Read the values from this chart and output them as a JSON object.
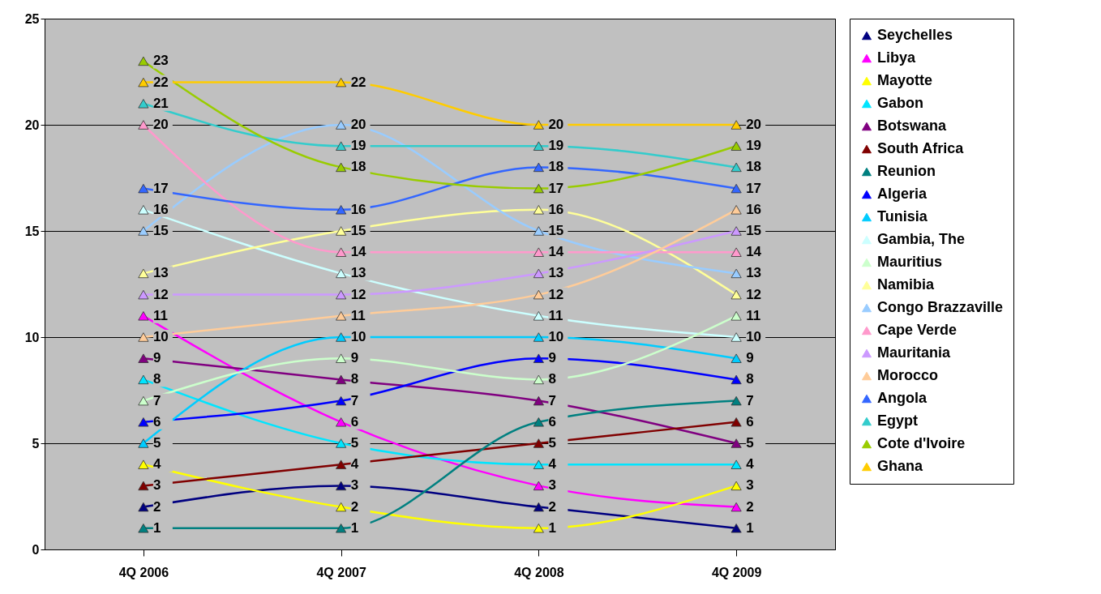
{
  "chart_data": {
    "type": "line",
    "categories": [
      "4Q 2006",
      "4Q 2007",
      "4Q 2008",
      "4Q 2009"
    ],
    "ylim": [
      0,
      25
    ],
    "yticks": [
      0,
      5,
      10,
      15,
      20,
      25
    ],
    "grid": "y",
    "legend": "right",
    "marker": "triangle",
    "line_style": "solid",
    "data_labels": true,
    "series": [
      {
        "name": "Seychelles",
        "color": "#000080",
        "values": [
          2,
          3,
          2,
          1
        ]
      },
      {
        "name": "Libya",
        "color": "#ff00ff",
        "values": [
          11,
          6,
          3,
          2
        ]
      },
      {
        "name": "Mayotte",
        "color": "#ffff00",
        "values": [
          4,
          2,
          1,
          3
        ]
      },
      {
        "name": "Gabon",
        "color": "#00e5ff",
        "values": [
          8,
          5,
          4,
          4
        ]
      },
      {
        "name": "Botswana",
        "color": "#800080",
        "values": [
          9,
          8,
          7,
          5
        ]
      },
      {
        "name": "South Africa",
        "color": "#800000",
        "values": [
          3,
          4,
          5,
          6
        ]
      },
      {
        "name": "Reunion",
        "color": "#008080",
        "values": [
          1,
          1,
          6,
          7
        ]
      },
      {
        "name": "Algeria",
        "color": "#0000ff",
        "values": [
          6,
          7,
          9,
          8
        ]
      },
      {
        "name": "Tunisia",
        "color": "#00ccff",
        "values": [
          5,
          10,
          10,
          9
        ]
      },
      {
        "name": "Gambia, The",
        "color": "#ccffff",
        "values": [
          16,
          13,
          11,
          10
        ]
      },
      {
        "name": "Mauritius",
        "color": "#ccffcc",
        "values": [
          7,
          9,
          8,
          11
        ]
      },
      {
        "name": "Namibia",
        "color": "#ffff99",
        "values": [
          13,
          15,
          16,
          12
        ]
      },
      {
        "name": "Congo Brazzaville",
        "color": "#99ccff",
        "values": [
          15,
          20,
          15,
          13
        ]
      },
      {
        "name": "Cape Verde",
        "color": "#ff99cc",
        "values": [
          20,
          14,
          14,
          14
        ]
      },
      {
        "name": "Mauritania",
        "color": "#cc99ff",
        "values": [
          12,
          12,
          13,
          15
        ]
      },
      {
        "name": "Morocco",
        "color": "#ffcc99",
        "values": [
          10,
          11,
          12,
          16
        ]
      },
      {
        "name": "Angola",
        "color": "#3366ff",
        "values": [
          17,
          16,
          18,
          17
        ]
      },
      {
        "name": "Egypt",
        "color": "#33cccc",
        "values": [
          21,
          19,
          19,
          18
        ]
      },
      {
        "name": "Cote d'Ivoire",
        "color": "#99cc00",
        "values": [
          23,
          18,
          17,
          19
        ]
      },
      {
        "name": "Ghana",
        "color": "#ffcc00",
        "values": [
          22,
          22,
          20,
          20
        ]
      }
    ]
  }
}
